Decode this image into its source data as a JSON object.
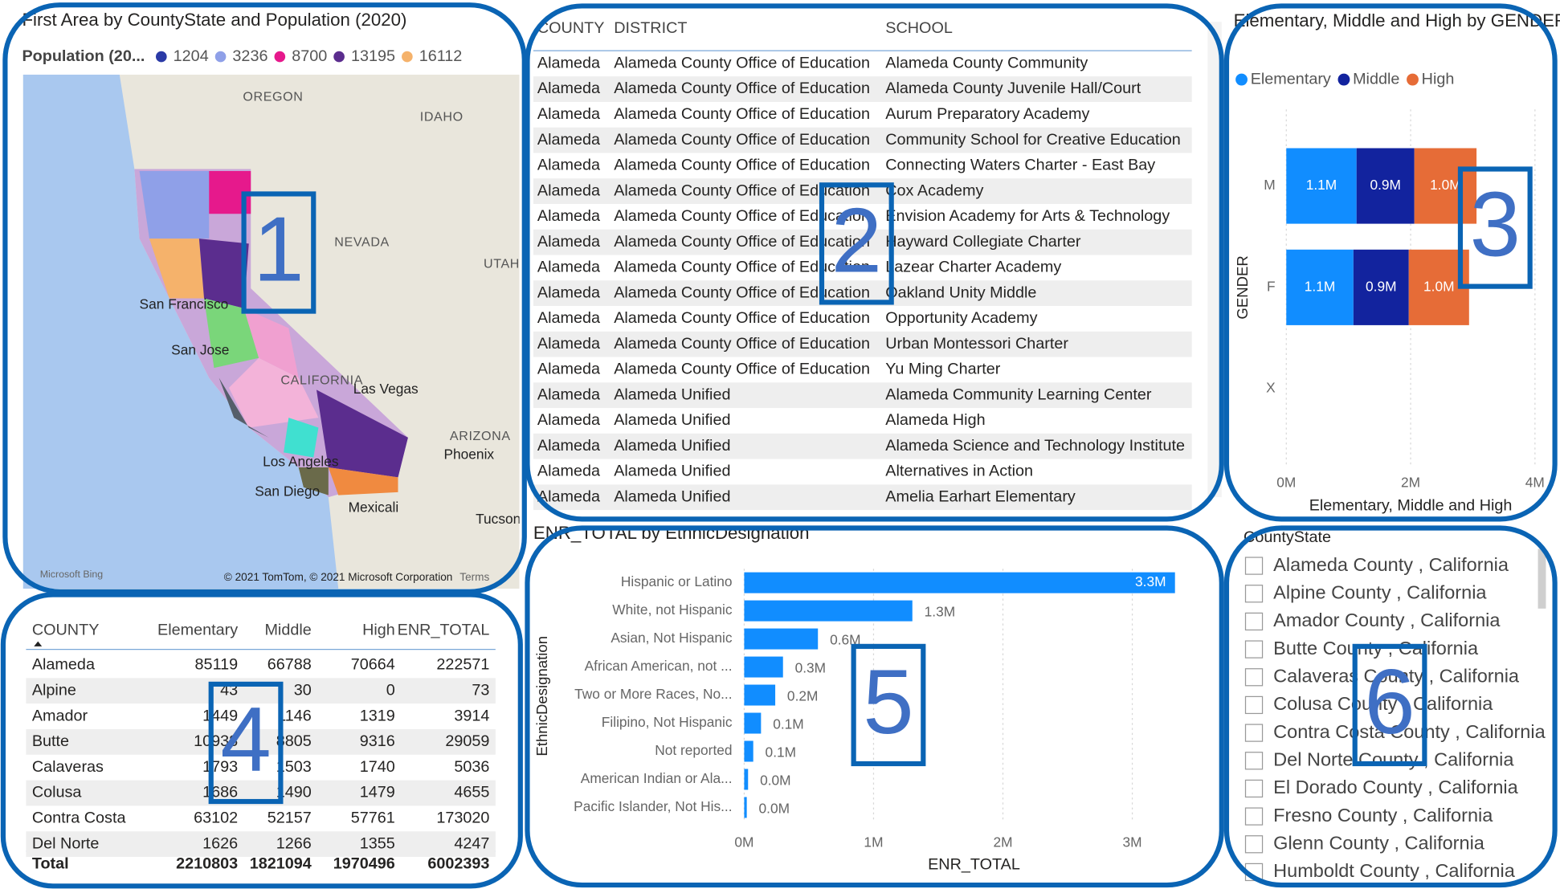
{
  "map": {
    "title": "First Area by CountyState and Population (2020)",
    "legend_title": "Population (20...",
    "legend": [
      {
        "label": 1204,
        "color": "#2a3aa6"
      },
      {
        "label": 3236,
        "color": "#8fa0e8"
      },
      {
        "label": 8700,
        "color": "#e6198c"
      },
      {
        "label": 13195,
        "color": "#5b2d8e"
      },
      {
        "label": 16112,
        "color": "#f5b26b"
      }
    ],
    "labels": [
      "OREGON",
      "IDAHO",
      "NEVADA",
      "UTAH",
      "San Francisco",
      "San Jose",
      "CALIFORNIA",
      "Las Vegas",
      "ARIZONA",
      "Phoenix",
      "Los Angeles",
      "San Diego",
      "Mexicali",
      "Tucson"
    ],
    "attribution": "Microsoft Bing",
    "copyright": "© 2021 TomTom, © 2021 Microsoft Corporation",
    "terms": "Terms"
  },
  "school_table": {
    "columns": [
      "COUNTY",
      "DISTRICT",
      "SCHOOL"
    ],
    "rows": [
      [
        "Alameda",
        "Alameda County Office of Education",
        "Alameda County Community"
      ],
      [
        "Alameda",
        "Alameda County Office of Education",
        "Alameda County Juvenile Hall/Court"
      ],
      [
        "Alameda",
        "Alameda County Office of Education",
        "Aurum Preparatory Academy"
      ],
      [
        "Alameda",
        "Alameda County Office of Education",
        "Community School for Creative Education"
      ],
      [
        "Alameda",
        "Alameda County Office of Education",
        "Connecting Waters Charter - East Bay"
      ],
      [
        "Alameda",
        "Alameda County Office of Education",
        "Cox Academy"
      ],
      [
        "Alameda",
        "Alameda County Office of Education",
        "Envision Academy for Arts & Technology"
      ],
      [
        "Alameda",
        "Alameda County Office of Education",
        "Hayward Collegiate Charter"
      ],
      [
        "Alameda",
        "Alameda County Office of Education",
        "Lazear Charter Academy"
      ],
      [
        "Alameda",
        "Alameda County Office of Education",
        "Oakland Unity Middle"
      ],
      [
        "Alameda",
        "Alameda County Office of Education",
        "Opportunity Academy"
      ],
      [
        "Alameda",
        "Alameda County Office of Education",
        "Urban Montessori Charter"
      ],
      [
        "Alameda",
        "Alameda County Office of Education",
        "Yu Ming Charter"
      ],
      [
        "Alameda",
        "Alameda Unified",
        "Alameda Community Learning Center"
      ],
      [
        "Alameda",
        "Alameda Unified",
        "Alameda High"
      ],
      [
        "Alameda",
        "Alameda Unified",
        "Alameda Science and Technology Institute"
      ],
      [
        "Alameda",
        "Alameda Unified",
        "Alternatives in Action"
      ],
      [
        "Alameda",
        "Alameda Unified",
        "Amelia Earhart Elementary"
      ]
    ]
  },
  "chart_data": [
    {
      "type": "bar",
      "orientation": "horizontal",
      "stacked": true,
      "title": "Elementary, Middle and High by GENDER",
      "x_label": "Elementary, Middle and High",
      "y_label": "GENDER",
      "categories": [
        "M",
        "F",
        "X"
      ],
      "series": [
        {
          "name": "Elementary",
          "color": "#118dff",
          "values": [
            1130000,
            1080000,
            null
          ],
          "value_labels": [
            "1.1M",
            "1.1M",
            null
          ]
        },
        {
          "name": "Middle",
          "color": "#12239e",
          "values": [
            930000,
            890000,
            null
          ],
          "value_labels": [
            "0.9M",
            "0.9M",
            null
          ]
        },
        {
          "name": "High",
          "color": "#e66c37",
          "values": [
            1000000,
            970000,
            null
          ],
          "value_labels": [
            "1.0M",
            "1.0M",
            null
          ]
        }
      ],
      "xlim": [
        0,
        4000000
      ],
      "xticks": [
        {
          "value": 0,
          "label": "0M"
        },
        {
          "value": 2000000,
          "label": "2M"
        },
        {
          "value": 4000000,
          "label": "4M"
        }
      ],
      "grid": true,
      "legend": "top-left"
    },
    {
      "type": "bar",
      "orientation": "horizontal",
      "title": "ENR_TOTAL by EthnicDesignation",
      "x_label": "ENR_TOTAL",
      "y_label": "EthnicDesignation",
      "categories": [
        "Hispanic or Latino",
        "White, not Hispanic",
        "Asian, Not Hispanic",
        "African American, not ...",
        "Two or More Races, No...",
        "Filipino, Not Hispanic",
        "Not reported",
        "American Indian or Ala...",
        "Pacific Islander, Not His..."
      ],
      "values": [
        3330000,
        1300000,
        570000,
        300000,
        240000,
        130000,
        70000,
        30000,
        20000
      ],
      "value_labels": [
        "3.3M",
        "1.3M",
        "0.6M",
        "0.3M",
        "0.2M",
        "0.1M",
        "0.1M",
        "0.0M",
        "0.0M"
      ],
      "color": "#118dff",
      "xlim": [
        0,
        3360000
      ],
      "xticks": [
        {
          "value": 0,
          "label": "0M"
        },
        {
          "value": 1000000,
          "label": "1M"
        },
        {
          "value": 2000000,
          "label": "2M"
        },
        {
          "value": 3000000,
          "label": "3M"
        }
      ],
      "grid": true
    }
  ],
  "county_table": {
    "columns": [
      "COUNTY",
      "Elementary",
      "Middle",
      "High",
      "ENR_TOTAL"
    ],
    "rows": [
      [
        "Alameda",
        85119,
        66788,
        70664,
        222571
      ],
      [
        "Alpine",
        43,
        30,
        0,
        73
      ],
      [
        "Amador",
        1449,
        1146,
        1319,
        3914
      ],
      [
        "Butte",
        10938,
        8805,
        9316,
        29059
      ],
      [
        "Calaveras",
        1793,
        1503,
        1740,
        5036
      ],
      [
        "Colusa",
        1686,
        1490,
        1479,
        4655
      ],
      [
        "Contra Costa",
        63102,
        52157,
        57761,
        173020
      ],
      [
        "Del Norte",
        1626,
        1266,
        1355,
        4247
      ]
    ],
    "total": [
      "Total",
      2210803,
      1821094,
      1970496,
      6002393
    ]
  },
  "slicer": {
    "title": "CountyState",
    "items": [
      "Alameda County , California",
      "Alpine County , California",
      "Amador County , California",
      "Butte County , California",
      "Calaveras County , California",
      "Colusa County , California",
      "Contra Costa County , California",
      "Del Norte County , California",
      "El Dorado County , California",
      "Fresno County , California",
      "Glenn County , California",
      "Humboldt County , California"
    ]
  },
  "callouts": [
    "1",
    "2",
    "3",
    "4",
    "5",
    "6"
  ]
}
